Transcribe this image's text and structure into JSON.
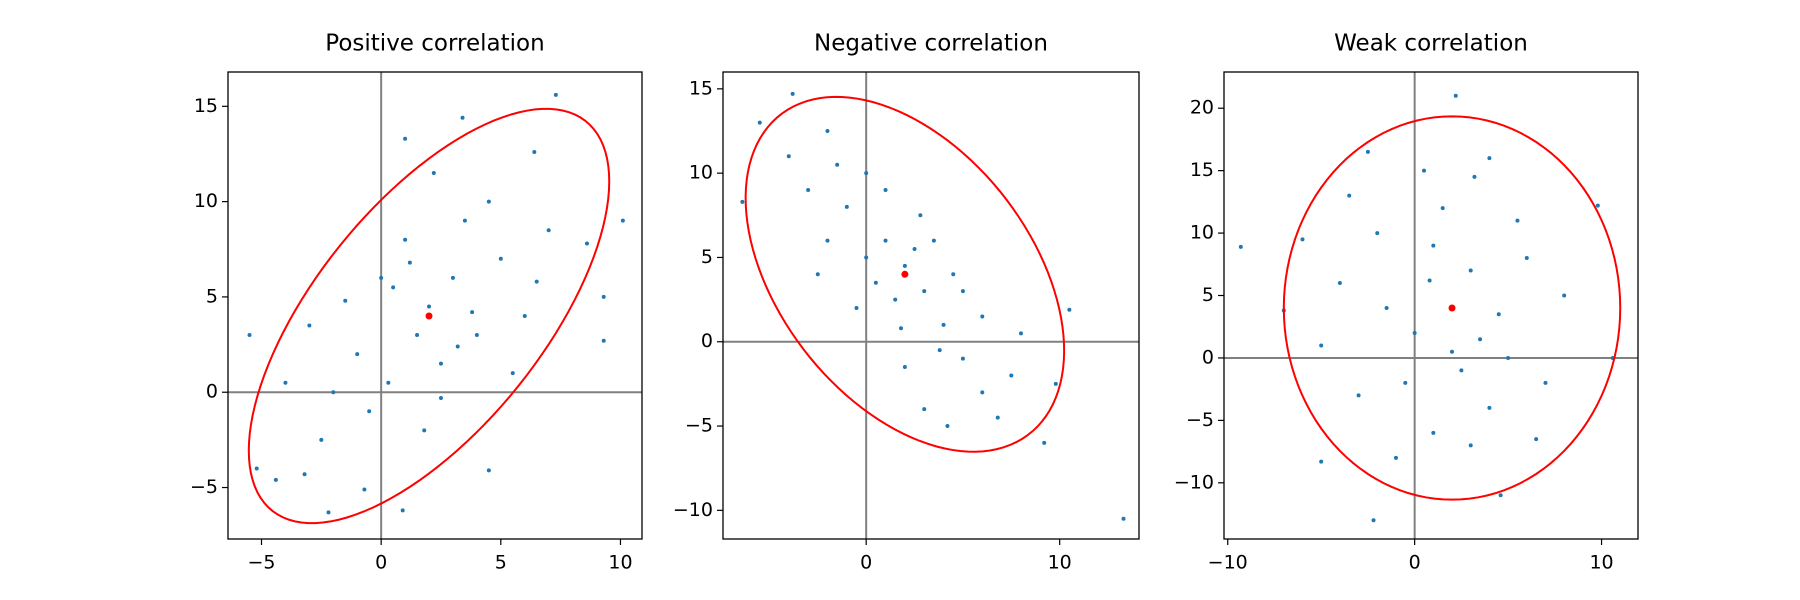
{
  "chart_data": [
    {
      "type": "scatter",
      "title": "Positive correlation",
      "color": "#1f77b4",
      "x": [
        7.3,
        10.1,
        -5.5,
        -5.2,
        9.3,
        1,
        3.4,
        -4.4,
        -2.2,
        0.9,
        -0.7,
        4.5,
        6.4,
        8.6,
        9.3,
        -3.2,
        2.5,
        2,
        1.5,
        3,
        0.5,
        -1,
        4,
        5,
        -2,
        3.5,
        1,
        -0.5,
        6,
        2.5,
        -3,
        0,
        4.5,
        1.8,
        -1.5,
        3.2,
        5.5,
        7,
        -4,
        2.2,
        0.3,
        6.5,
        -2.5,
        1.2,
        3.8
      ],
      "y": [
        15.6,
        9,
        3,
        -4,
        2.7,
        13.3,
        14.4,
        -4.6,
        -6.3,
        -6.2,
        -5.1,
        -4.1,
        12.6,
        7.8,
        5,
        -4.3,
        -0.3,
        4.5,
        3,
        6,
        5.5,
        2,
        3,
        7,
        0,
        9,
        8,
        -1,
        4,
        1.5,
        3.5,
        6,
        10,
        -2,
        4.8,
        2.4,
        1,
        8.5,
        0.5,
        11.5,
        0.5,
        5.8,
        -2.5,
        6.8,
        4.2
      ],
      "mean": {
        "x": 2,
        "y": 4,
        "color": "#ff0000"
      },
      "ellipse": {
        "cx": 2,
        "cy": 4,
        "a": 12.2,
        "b": 5.1,
        "angle": 60,
        "color": "#ff0000"
      },
      "hline": 0,
      "vline": 0,
      "line_color": "#808080",
      "xlim": [
        -6.4,
        10.9
      ],
      "ylim": [
        -7.7,
        16.8
      ],
      "xticks": [
        {
          "value": -5,
          "label": "−5"
        },
        0,
        5,
        10
      ],
      "yticks": [
        {
          "value": -5,
          "label": "−5"
        },
        0,
        5,
        10,
        15
      ]
    },
    {
      "type": "scatter",
      "title": "Negative correlation",
      "color": "#1f77b4",
      "x": [
        13.3,
        10.5,
        9.2,
        -3.8,
        -6.4,
        -5.5,
        9.8,
        -2,
        0,
        1,
        2,
        3,
        -1,
        4,
        5,
        6,
        -3,
        2.5,
        1.5,
        3.5,
        0.5,
        4.5,
        -2,
        6,
        7.5,
        -4,
        2,
        3,
        8,
        0,
        -1.5,
        5,
        1,
        3.8,
        -0.5,
        4.2,
        6.8,
        -2.5,
        2.8,
        1.8
      ],
      "y": [
        -10.5,
        1.9,
        -6,
        14.7,
        8.3,
        13,
        -2.5,
        12.5,
        10,
        6,
        4.5,
        3,
        8,
        1,
        -1,
        -3,
        9,
        5.5,
        2.5,
        6,
        3.5,
        4,
        6,
        1.5,
        -2,
        11,
        -1.5,
        -4,
        0.5,
        5,
        10.5,
        3,
        9,
        -0.5,
        2,
        -5,
        -4.5,
        4,
        7.5,
        0.8
      ],
      "mean": {
        "x": 2,
        "y": 4,
        "color": "#ff0000"
      },
      "ellipse": {
        "cx": 2,
        "cy": 4,
        "a": 11.5,
        "b": 6.8,
        "angle": -60,
        "color": "#ff0000"
      },
      "hline": 0,
      "vline": 0,
      "line_color": "#808080",
      "xlim": [
        -7.4,
        14.1
      ],
      "ylim": [
        -11.7,
        16.0
      ],
      "xticks": [
        0,
        10
      ],
      "yticks": [
        {
          "value": -10,
          "label": "−10"
        },
        {
          "value": -5,
          "label": "−5"
        },
        0,
        5,
        10,
        15
      ]
    },
    {
      "type": "scatter",
      "title": "Weak correlation",
      "color": "#1f77b4",
      "x": [
        -9.3,
        2.2,
        -2.2,
        4.6,
        -5,
        10.6,
        9.8,
        4,
        -7,
        1,
        2,
        3,
        0,
        -2,
        5,
        -3,
        1.5,
        4,
        -4,
        6,
        2.5,
        0.5,
        -1,
        3.5,
        -5,
        7,
        1,
        -1.5,
        5.5,
        3,
        -3.5,
        2,
        8,
        -0.5,
        4.5,
        -2.5,
        6.5,
        0.8,
        -6,
        3.2
      ],
      "y": [
        8.9,
        21,
        -13,
        -11,
        -8.3,
        0,
        12.2,
        16,
        3.8,
        -6,
        4,
        7,
        2,
        10,
        0,
        -3,
        12,
        -4,
        6,
        8,
        -1,
        15,
        -8,
        1.5,
        1,
        -2,
        9,
        4,
        11,
        -7,
        13,
        0.5,
        5,
        -2,
        3.5,
        16.5,
        -6.5,
        6.2,
        9.5,
        14.5
      ],
      "mean": {
        "x": 2,
        "y": 4,
        "color": "#ff0000"
      },
      "ellipse": {
        "cx": 2,
        "cy": 4,
        "a": 15.35,
        "b": 9.0,
        "angle": 90,
        "color": "#ff0000"
      },
      "hline": 0,
      "vline": 0,
      "line_color": "#808080",
      "xlim": [
        -10.2,
        11.95
      ],
      "ylim": [
        -14.5,
        22.9
      ],
      "xticks": [
        {
          "value": -10,
          "label": "−10"
        },
        0,
        10
      ],
      "yticks": [
        {
          "value": -10,
          "label": "−10"
        },
        {
          "value": -5,
          "label": "−5"
        },
        0,
        5,
        10,
        15,
        20
      ]
    }
  ]
}
